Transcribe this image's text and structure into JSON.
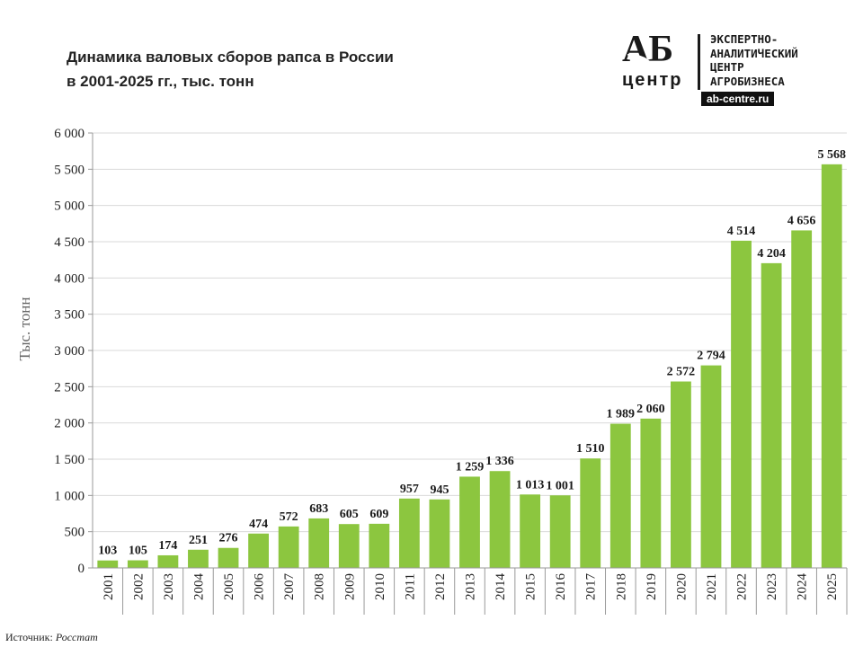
{
  "title": {
    "line1": "Динамика валовых сборов рапса в России",
    "line2": "в 2001-2025 гг., тыс. тонн"
  },
  "logo": {
    "letters": "АБ",
    "centr": "центр",
    "lines": "ЭКСПЕРТНО-\nАНАЛИТИЧЕСКИЙ\nЦЕНТР\nАГРОБИЗНЕСА",
    "url": "ab-centre.ru"
  },
  "source": {
    "label": "Источник:",
    "name": "Росстат"
  },
  "colors": {
    "bar": "#8cc63f",
    "grid": "#d9d9d9",
    "axis": "#9a9a9a"
  },
  "chart_data": {
    "type": "bar",
    "title": "Динамика валовых сборов рапса в России в 2001-2025 гг., тыс. тонн",
    "xlabel": "",
    "ylabel": "Тыс. тонн",
    "ylim": [
      0,
      6000
    ],
    "ytick_values": [
      0,
      500,
      1000,
      1500,
      2000,
      2500,
      3000,
      3500,
      4000,
      4500,
      5000,
      5500,
      6000
    ],
    "ytick_labels": [
      "0",
      "500",
      "1 000",
      "1 500",
      "2 000",
      "2 500",
      "3 000",
      "3 500",
      "4 000",
      "4 500",
      "5 000",
      "5 500",
      "6 000"
    ],
    "grid": true,
    "categories": [
      "2001",
      "2002",
      "2003",
      "2004",
      "2005",
      "2006",
      "2007",
      "2008",
      "2009",
      "2010",
      "2011",
      "2012",
      "2013",
      "2014",
      "2015",
      "2016",
      "2017",
      "2018",
      "2019",
      "2020",
      "2021",
      "2022",
      "2023",
      "2024",
      "2025"
    ],
    "values": [
      103,
      105,
      174,
      251,
      276,
      474,
      572,
      683,
      605,
      609,
      957,
      945,
      1259,
      1336,
      1013,
      1001,
      1510,
      1989,
      2060,
      2572,
      2794,
      4514,
      4204,
      4656,
      5568
    ],
    "labels": [
      "103",
      "105",
      "174",
      "251",
      "276",
      "474",
      "572",
      "683",
      "605",
      "609",
      "957",
      "945",
      "1 259",
      "1 336",
      "1 013",
      "1 001",
      "1 510",
      "1 989",
      "2 060",
      "2 572",
      "2 794",
      "4 514",
      "4 204",
      "4 656",
      "5 568"
    ]
  }
}
